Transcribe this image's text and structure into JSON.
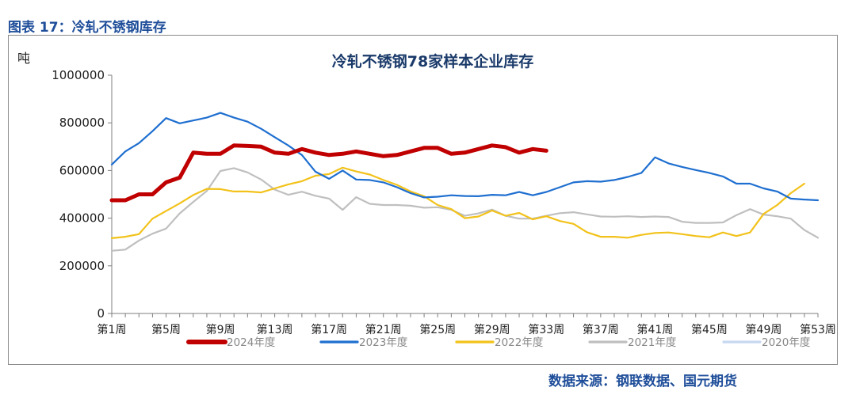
{
  "header": {
    "figure_title": "图表 17：冷轧不锈钢库存",
    "source": "数据来源：钢联数据、国元期货"
  },
  "chart_data": {
    "type": "line",
    "title": "冷轧不锈钢78家样本企业库存",
    "ylabel": "吨",
    "ylim": [
      0,
      1000000
    ],
    "yticks": [
      "0",
      "200000",
      "400000",
      "600000",
      "800000",
      "1000000"
    ],
    "x_range": [
      1,
      53
    ],
    "xticks": [
      "第1周",
      "第5周",
      "第9周",
      "第13周",
      "第17周",
      "第21周",
      "第25周",
      "第29周",
      "第33周",
      "第37周",
      "第41周",
      "第45周",
      "第49周",
      "第53周"
    ],
    "legend_position": "bottom",
    "series": [
      {
        "name": "2024年度",
        "color": "#c00000",
        "width": 5,
        "start_week": 1,
        "values": [
          475000,
          475000,
          500000,
          500000,
          550000,
          570000,
          675000,
          670000,
          670000,
          705000,
          703000,
          700000,
          675000,
          670000,
          690000,
          675000,
          665000,
          670000,
          680000,
          670000,
          660000,
          665000,
          680000,
          695000,
          695000,
          670000,
          675000,
          690000,
          705000,
          698000,
          675000,
          690000,
          683000
        ]
      },
      {
        "name": "2023年度",
        "color": "#1f6fd0",
        "width": 2.2,
        "start_week": 1,
        "values": [
          625000,
          680000,
          715000,
          765000,
          820000,
          798000,
          810000,
          822000,
          842000,
          822000,
          805000,
          775000,
          740000,
          705000,
          665000,
          595000,
          565000,
          600000,
          562000,
          560000,
          550000,
          530000,
          505000,
          487000,
          490000,
          496000,
          493000,
          492000,
          498000,
          496000,
          510000,
          496000,
          510000,
          530000,
          550000,
          555000,
          553000,
          560000,
          573000,
          590000,
          655000,
          630000,
          615000,
          602000,
          590000,
          575000,
          545000,
          545000,
          525000,
          512000,
          482000,
          478000,
          475000
        ]
      },
      {
        "name": "2022年度",
        "color": "#f2c21b",
        "width": 2.2,
        "start_week": 1,
        "values": [
          316000,
          322000,
          333000,
          398000,
          430000,
          462000,
          497000,
          523000,
          522000,
          512000,
          512000,
          508000,
          525000,
          542000,
          555000,
          578000,
          585000,
          612000,
          596000,
          583000,
          560000,
          540000,
          512000,
          492000,
          455000,
          438000,
          400000,
          407000,
          432000,
          410000,
          422000,
          395000,
          408000,
          388000,
          376000,
          341000,
          322000,
          322000,
          318000,
          330000,
          338000,
          340000,
          333000,
          325000,
          320000,
          340000,
          325000,
          340000,
          418000,
          455000,
          505000,
          545000
        ]
      },
      {
        "name": "2021年度",
        "color": "#bfbfbf",
        "width": 2.2,
        "start_week": 1,
        "values": [
          263000,
          268000,
          306000,
          335000,
          356000,
          420000,
          468000,
          514000,
          598000,
          610000,
          592000,
          562000,
          520000,
          498000,
          511000,
          494000,
          482000,
          435000,
          488000,
          460000,
          455000,
          455000,
          452000,
          444000,
          446000,
          435000,
          410000,
          420000,
          436000,
          410000,
          398000,
          398000,
          410000,
          421000,
          425000,
          416000,
          407000,
          406000,
          408000,
          405000,
          407000,
          405000,
          385000,
          380000,
          380000,
          382000,
          413000,
          438000,
          415000,
          408000,
          398000,
          350000,
          318000
        ]
      },
      {
        "name": "2020年度",
        "color": "#c6d8f0",
        "width": 2.2,
        "start_week": 1,
        "values": []
      }
    ]
  }
}
